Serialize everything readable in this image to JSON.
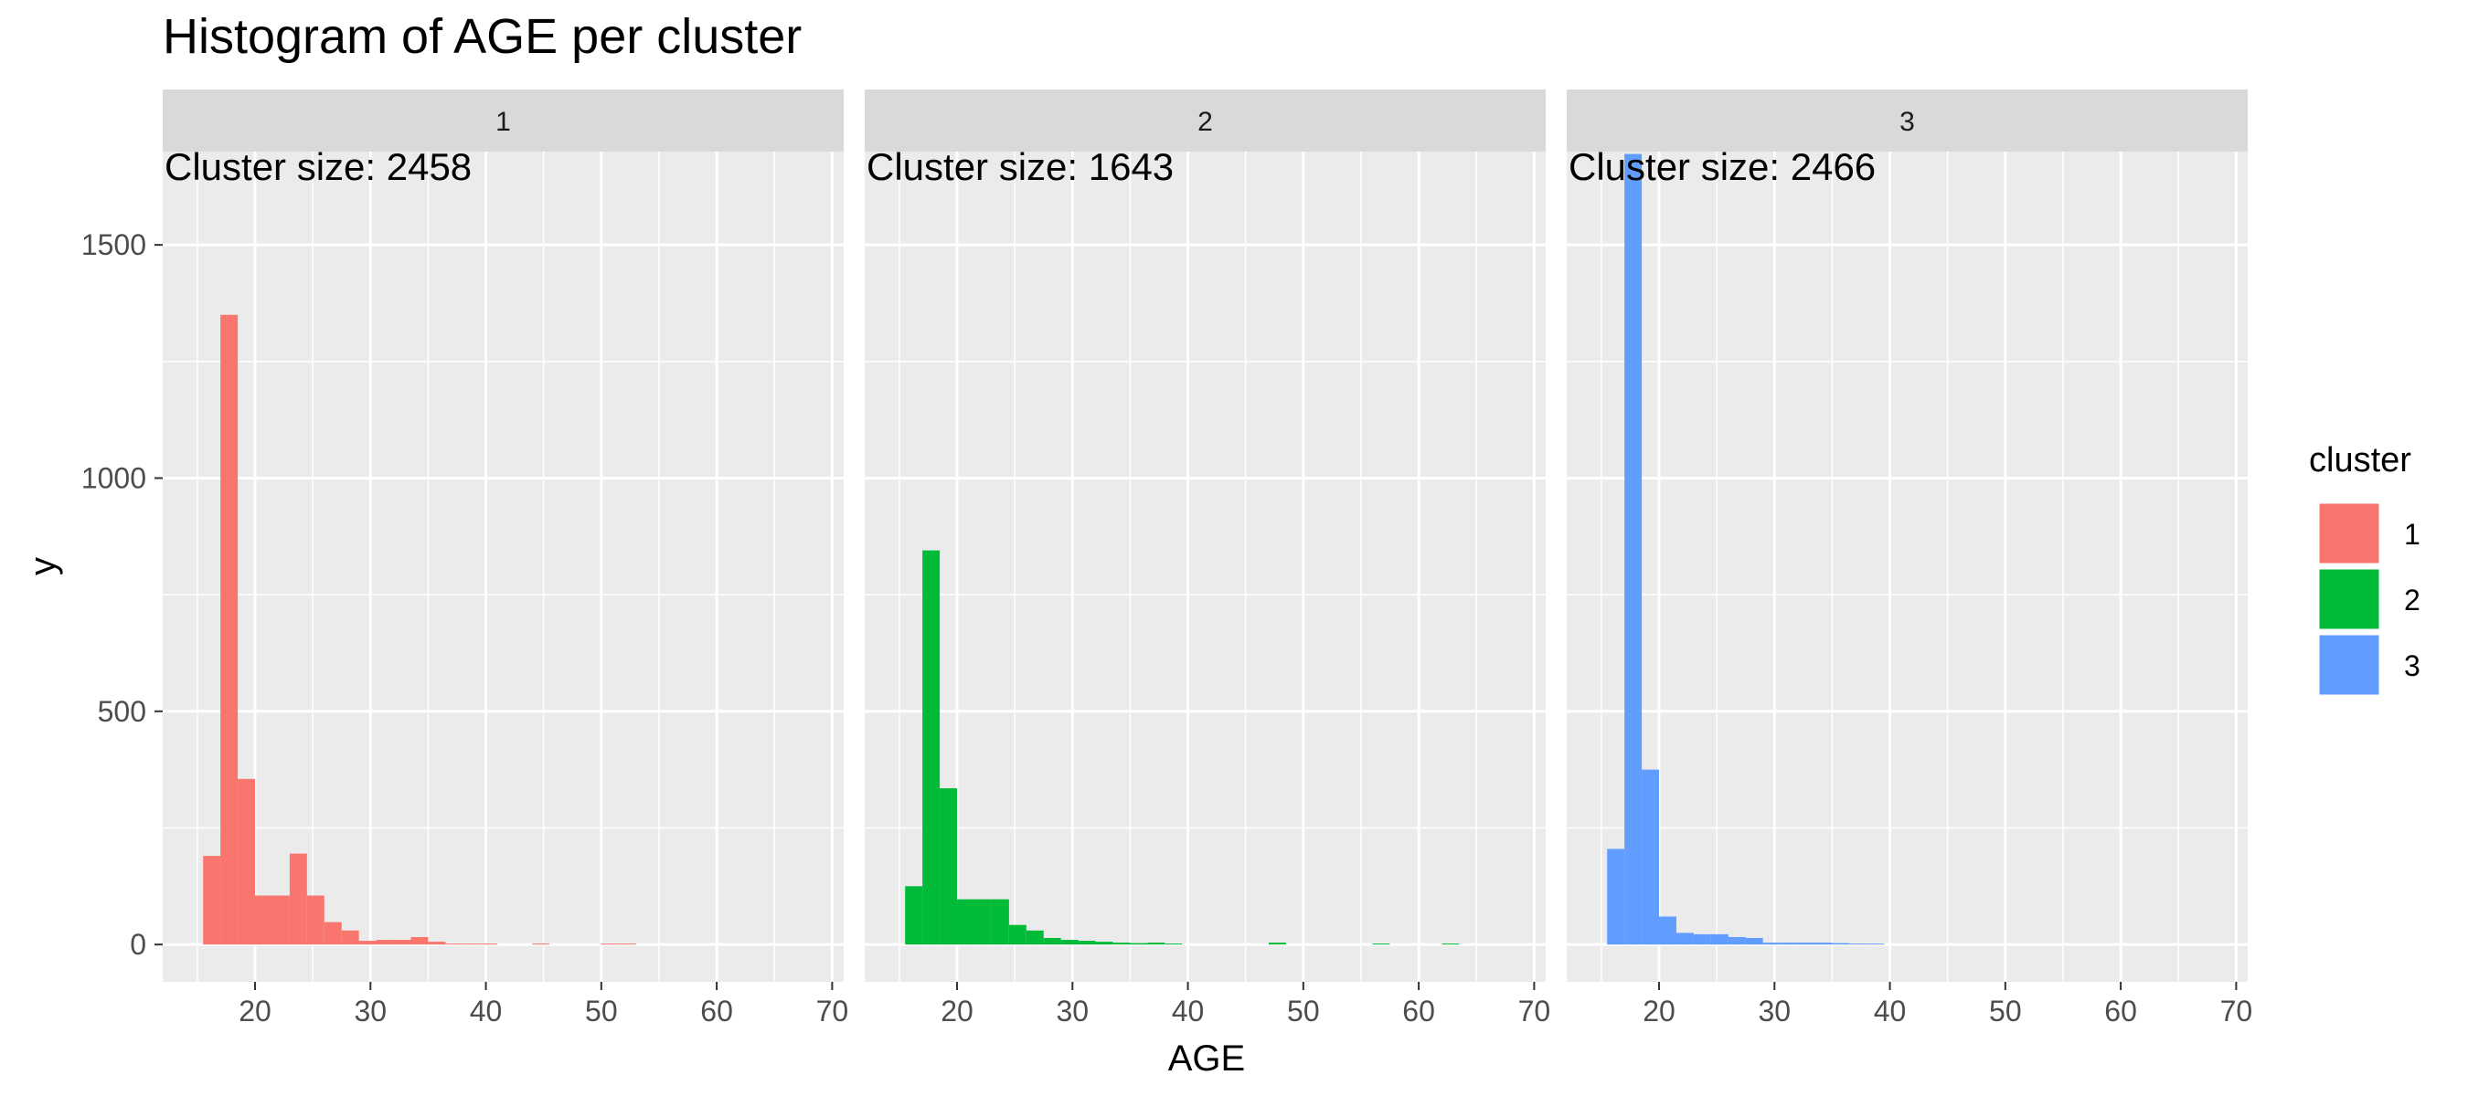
{
  "chart_data": {
    "type": "bar",
    "title": "Histogram of AGE per cluster",
    "xlabel": "AGE",
    "ylabel": "y",
    "xlim": [
      12,
      71
    ],
    "ylim": [
      -80,
      1700
    ],
    "x_ticks": [
      20,
      30,
      40,
      50,
      60,
      70
    ],
    "y_ticks": [
      0,
      500,
      1000,
      1500
    ],
    "x_tick_labels": [
      "20",
      "30",
      "40",
      "50",
      "60",
      "70"
    ],
    "y_tick_labels": [
      "0",
      "500",
      "1000",
      "1500"
    ],
    "bin_width": 1.5,
    "grid": true,
    "legend": {
      "title": "cluster",
      "position": "right",
      "entries": [
        {
          "label": "1",
          "color": "#F8766D"
        },
        {
          "label": "2",
          "color": "#00BA38"
        },
        {
          "label": "3",
          "color": "#619CFF"
        }
      ]
    },
    "panels": [
      {
        "strip": "1",
        "annotation": "Cluster size: 2458",
        "color": "#F8766D",
        "bins": [
          {
            "x0": 15.5,
            "x1": 17.0,
            "count": 190
          },
          {
            "x0": 17.0,
            "x1": 18.5,
            "count": 1350
          },
          {
            "x0": 18.5,
            "x1": 20.0,
            "count": 355
          },
          {
            "x0": 20.0,
            "x1": 21.5,
            "count": 105
          },
          {
            "x0": 21.5,
            "x1": 23.0,
            "count": 105
          },
          {
            "x0": 23.0,
            "x1": 24.5,
            "count": 195
          },
          {
            "x0": 24.5,
            "x1": 26.0,
            "count": 105
          },
          {
            "x0": 26.0,
            "x1": 27.5,
            "count": 48
          },
          {
            "x0": 27.5,
            "x1": 29.0,
            "count": 30
          },
          {
            "x0": 29.0,
            "x1": 30.5,
            "count": 8
          },
          {
            "x0": 30.5,
            "x1": 32.0,
            "count": 10
          },
          {
            "x0": 32.0,
            "x1": 33.5,
            "count": 10
          },
          {
            "x0": 33.5,
            "x1": 35.0,
            "count": 16
          },
          {
            "x0": 35.0,
            "x1": 36.5,
            "count": 6
          },
          {
            "x0": 36.5,
            "x1": 38.0,
            "count": 2
          },
          {
            "x0": 38.0,
            "x1": 39.5,
            "count": 2
          },
          {
            "x0": 39.5,
            "x1": 41.0,
            "count": 2
          },
          {
            "x0": 44.0,
            "x1": 45.5,
            "count": 2
          },
          {
            "x0": 50.0,
            "x1": 51.5,
            "count": 2
          },
          {
            "x0": 51.5,
            "x1": 53.0,
            "count": 2
          }
        ]
      },
      {
        "strip": "2",
        "annotation": "Cluster size: 1643",
        "color": "#00BA38",
        "bins": [
          {
            "x0": 15.5,
            "x1": 17.0,
            "count": 125
          },
          {
            "x0": 17.0,
            "x1": 18.5,
            "count": 845
          },
          {
            "x0": 18.5,
            "x1": 20.0,
            "count": 335
          },
          {
            "x0": 20.0,
            "x1": 21.5,
            "count": 97
          },
          {
            "x0": 21.5,
            "x1": 23.0,
            "count": 97
          },
          {
            "x0": 23.0,
            "x1": 24.5,
            "count": 97
          },
          {
            "x0": 24.5,
            "x1": 26.0,
            "count": 42
          },
          {
            "x0": 26.0,
            "x1": 27.5,
            "count": 30
          },
          {
            "x0": 27.5,
            "x1": 29.0,
            "count": 14
          },
          {
            "x0": 29.0,
            "x1": 30.5,
            "count": 10
          },
          {
            "x0": 30.5,
            "x1": 32.0,
            "count": 8
          },
          {
            "x0": 32.0,
            "x1": 33.5,
            "count": 6
          },
          {
            "x0": 33.5,
            "x1": 35.0,
            "count": 4
          },
          {
            "x0": 35.0,
            "x1": 36.5,
            "count": 3
          },
          {
            "x0": 36.5,
            "x1": 38.0,
            "count": 4
          },
          {
            "x0": 38.0,
            "x1": 39.5,
            "count": 2
          },
          {
            "x0": 47.0,
            "x1": 48.5,
            "count": 4
          },
          {
            "x0": 56.0,
            "x1": 57.5,
            "count": 2
          },
          {
            "x0": 62.0,
            "x1": 63.5,
            "count": 2
          }
        ]
      },
      {
        "strip": "3",
        "annotation": "Cluster size: 2466",
        "color": "#619CFF",
        "bins": [
          {
            "x0": 15.5,
            "x1": 17.0,
            "count": 205
          },
          {
            "x0": 17.0,
            "x1": 18.5,
            "count": 1695
          },
          {
            "x0": 18.5,
            "x1": 20.0,
            "count": 375
          },
          {
            "x0": 20.0,
            "x1": 21.5,
            "count": 60
          },
          {
            "x0": 21.5,
            "x1": 23.0,
            "count": 25
          },
          {
            "x0": 23.0,
            "x1": 24.5,
            "count": 22
          },
          {
            "x0": 24.5,
            "x1": 26.0,
            "count": 22
          },
          {
            "x0": 26.0,
            "x1": 27.5,
            "count": 16
          },
          {
            "x0": 27.5,
            "x1": 29.0,
            "count": 14
          },
          {
            "x0": 29.0,
            "x1": 30.5,
            "count": 4
          },
          {
            "x0": 30.5,
            "x1": 32.0,
            "count": 4
          },
          {
            "x0": 32.0,
            "x1": 33.5,
            "count": 4
          },
          {
            "x0": 33.5,
            "x1": 35.0,
            "count": 4
          },
          {
            "x0": 35.0,
            "x1": 36.5,
            "count": 3
          },
          {
            "x0": 36.5,
            "x1": 38.0,
            "count": 2
          },
          {
            "x0": 38.0,
            "x1": 39.5,
            "count": 2
          }
        ]
      }
    ]
  }
}
